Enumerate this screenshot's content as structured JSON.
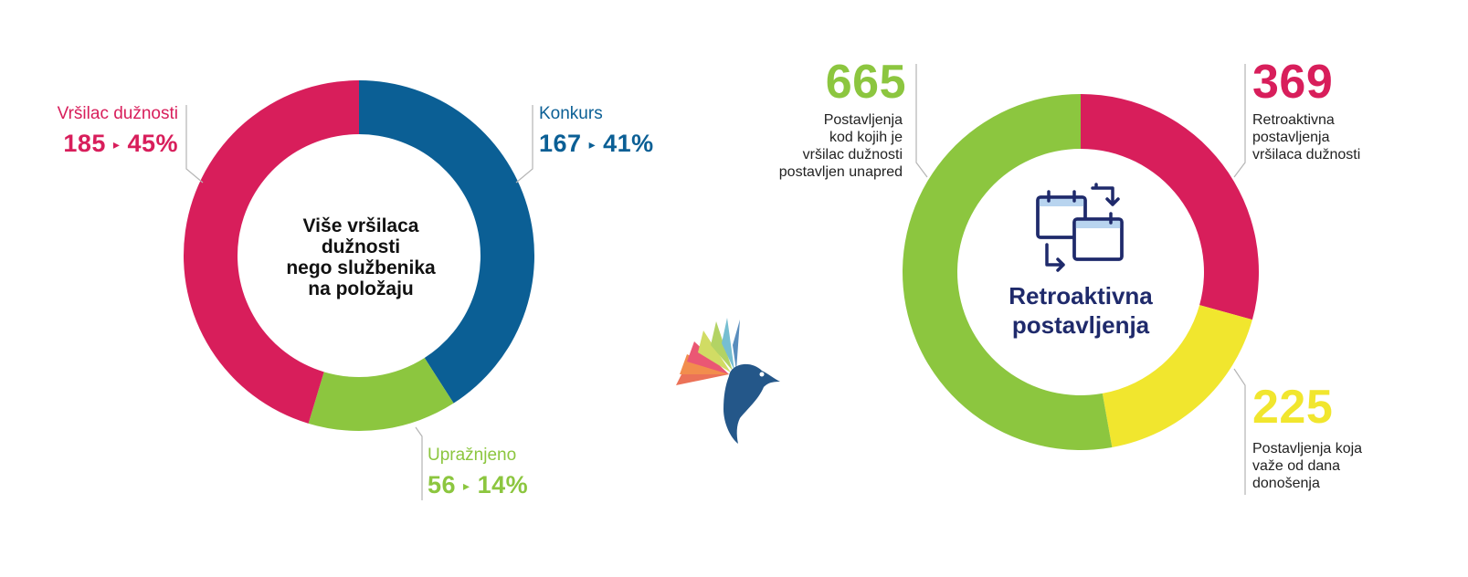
{
  "colors": {
    "pink": "#d81e5b",
    "blue": "#0b5f95",
    "green": "#8cc63f",
    "yellow": "#f1e62e",
    "navy": "#1f2a6b"
  },
  "chart_data": [
    {
      "type": "pie",
      "variant": "donut",
      "center_title": "Više vršilaca dužnosti nego službenika na položaju",
      "center_lines": [
        "Više vršilaca",
        "dužnosti",
        "nego službenika",
        "na položaju"
      ],
      "slices": [
        {
          "label": "Konkurs",
          "value": 167,
          "percent_label": "41%",
          "color": "#0b5f95"
        },
        {
          "label": "Upražnjeno",
          "value": 56,
          "percent_label": "14%",
          "color": "#8cc63f"
        },
        {
          "label": "Vršilac dužnosti",
          "value": 185,
          "percent_label": "45%",
          "color": "#d81e5b"
        }
      ]
    },
    {
      "type": "pie",
      "variant": "donut",
      "center_lines": [
        "Retroaktivna",
        "postavljenja"
      ],
      "slices": [
        {
          "value": 369,
          "description_lines": [
            "Retroaktivna",
            "postavljenja",
            "vršilaca dužnosti"
          ],
          "color": "#d81e5b"
        },
        {
          "value": 225,
          "description_lines": [
            "Postavljenja koja",
            "važe od dana",
            "donošenja"
          ],
          "color": "#f1e62e"
        },
        {
          "value": 665,
          "description_lines": [
            "Postavljenja",
            "kod kojih je",
            "vršilac dužnosti",
            "postavljen unapred"
          ],
          "color": "#8cc63f"
        }
      ]
    }
  ],
  "icons": {
    "center_icon": "calendar-swap-icon",
    "logo": "bird-logo-icon"
  },
  "labels": {
    "vd_name": "Vršilac dužnosti",
    "vd_count": "185",
    "vd_pct": "45%",
    "konkurs_name": "Konkurs",
    "konkurs_count": "167",
    "konkurs_pct": "41%",
    "upraz_name": "Upražnjeno",
    "upraz_count": "56",
    "upraz_pct": "14%",
    "arrow": "▸"
  }
}
